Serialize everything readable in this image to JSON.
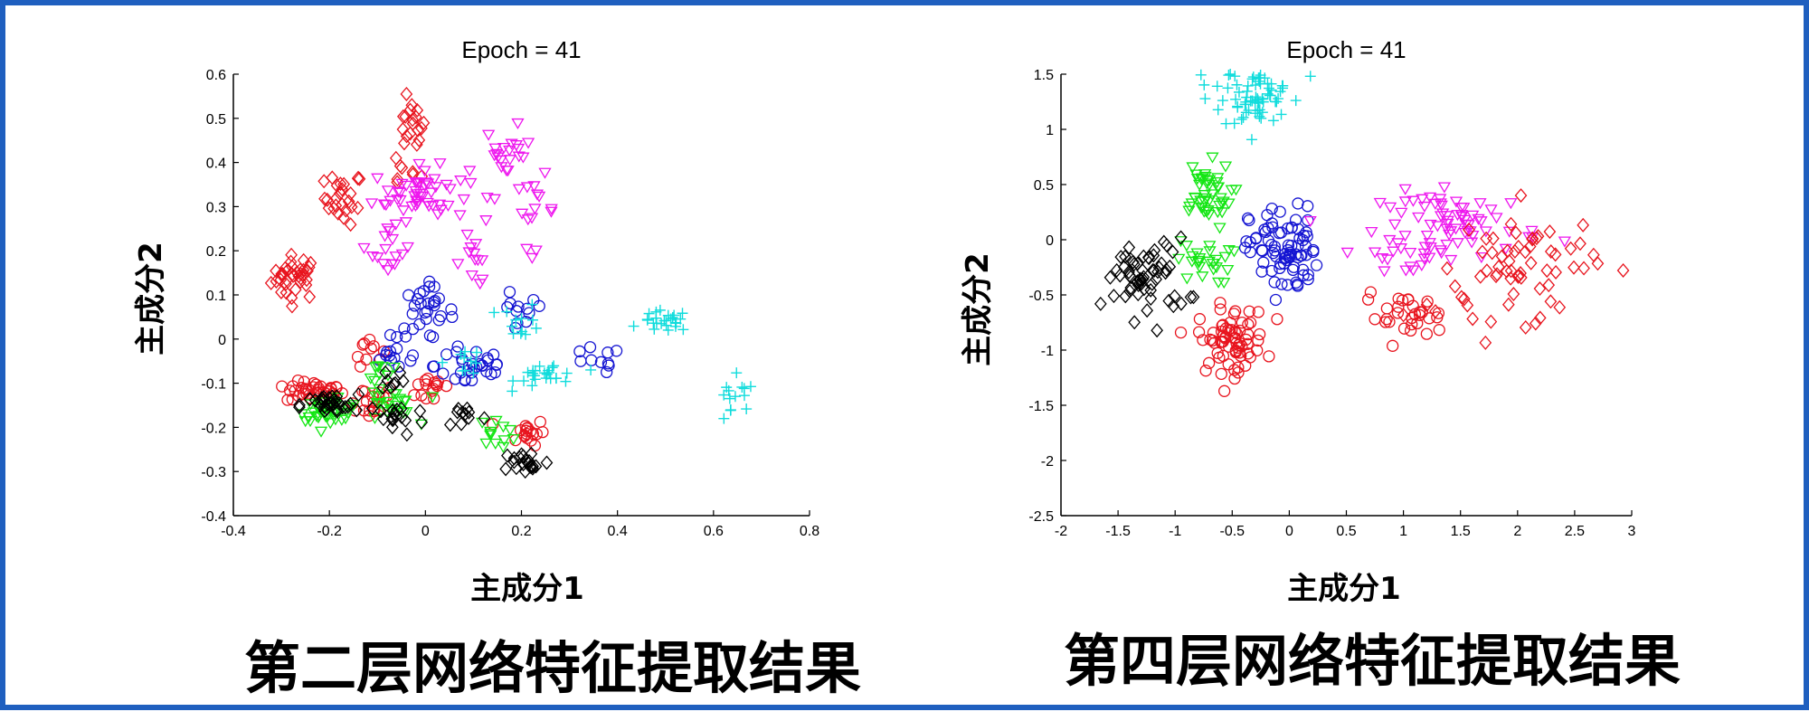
{
  "colors": {
    "border": "#1f5fbf",
    "red": "#e8141e",
    "magenta": "#ee16ee",
    "blue": "#1414d2",
    "cyan": "#10dcdc",
    "green": "#14e614",
    "black": "#000000"
  },
  "captions": [
    "第二层网络特征提取结果",
    "第四层网络特征提取结果"
  ],
  "chart_data": [
    {
      "type": "scatter",
      "title": "Epoch = 41",
      "xlabel": "主成分1",
      "ylabel": "主成分2",
      "xlim": [
        -0.4,
        0.8
      ],
      "ylim": [
        -0.4,
        0.6
      ],
      "xticks": [
        -0.4,
        -0.2,
        0,
        0.2,
        0.4,
        0.6,
        0.8
      ],
      "yticks": [
        -0.4,
        -0.3,
        -0.2,
        -0.1,
        0,
        0.1,
        0.2,
        0.3,
        0.4,
        0.5,
        0.6
      ],
      "grid": false,
      "series": [
        {
          "marker": "diamond",
          "color": "red",
          "clusters": [
            [
              -0.27,
              0.14,
              0.025,
              0.025,
              35
            ],
            [
              -0.17,
              0.32,
              0.02,
              0.03,
              25
            ],
            [
              -0.03,
              0.48,
              0.015,
              0.03,
              18
            ],
            [
              -0.05,
              0.38,
              0.02,
              0.02,
              8
            ]
          ]
        },
        {
          "marker": "circle",
          "color": "red",
          "clusters": [
            [
              -0.23,
              -0.12,
              0.03,
              0.012,
              40
            ],
            [
              -0.12,
              -0.14,
              0.03,
              0.02,
              20
            ],
            [
              0.02,
              -0.11,
              0.02,
              0.02,
              15
            ],
            [
              0.21,
              -0.21,
              0.02,
              0.015,
              18
            ],
            [
              -0.12,
              -0.02,
              0.015,
              0.02,
              10
            ]
          ]
        },
        {
          "marker": "triangle-down",
          "color": "magenta",
          "clusters": [
            [
              -0.01,
              0.33,
              0.05,
              0.03,
              55
            ],
            [
              -0.07,
              0.2,
              0.02,
              0.03,
              15
            ],
            [
              0.17,
              0.42,
              0.025,
              0.03,
              20
            ],
            [
              0.23,
              0.29,
              0.02,
              0.04,
              15
            ],
            [
              0.1,
              0.18,
              0.02,
              0.03,
              12
            ]
          ]
        },
        {
          "marker": "circle",
          "color": "blue",
          "clusters": [
            [
              0.0,
              0.06,
              0.03,
              0.03,
              30
            ],
            [
              0.1,
              -0.06,
              0.04,
              0.03,
              30
            ],
            [
              -0.06,
              -0.04,
              0.03,
              0.015,
              12
            ],
            [
              0.35,
              -0.05,
              0.03,
              0.015,
              10
            ],
            [
              0.19,
              0.05,
              0.03,
              0.03,
              12
            ]
          ]
        },
        {
          "marker": "plus",
          "color": "cyan",
          "clusters": [
            [
              0.5,
              0.04,
              0.025,
              0.012,
              25
            ],
            [
              0.64,
              -0.15,
              0.025,
              0.03,
              14
            ],
            [
              0.26,
              -0.08,
              0.035,
              0.015,
              25
            ],
            [
              0.2,
              0.04,
              0.02,
              0.02,
              12
            ],
            [
              0.08,
              -0.05,
              0.02,
              0.015,
              10
            ]
          ]
        },
        {
          "marker": "triangle-down",
          "color": "green",
          "clusters": [
            [
              -0.2,
              -0.16,
              0.03,
              0.012,
              40
            ],
            [
              -0.08,
              -0.15,
              0.03,
              0.025,
              25
            ],
            [
              0.15,
              -0.21,
              0.02,
              0.015,
              12
            ],
            [
              -0.1,
              -0.07,
              0.015,
              0.015,
              8
            ]
          ]
        },
        {
          "marker": "diamond",
          "color": "black",
          "clusters": [
            [
              -0.2,
              -0.15,
              0.03,
              0.012,
              30
            ],
            [
              -0.06,
              -0.18,
              0.03,
              0.02,
              18
            ],
            [
              0.21,
              -0.28,
              0.025,
              0.015,
              20
            ],
            [
              0.08,
              -0.17,
              0.02,
              0.015,
              10
            ],
            [
              -0.07,
              -0.09,
              0.015,
              0.015,
              8
            ]
          ]
        }
      ]
    },
    {
      "type": "scatter",
      "title": "Epoch = 41",
      "xlabel": "主成分1",
      "ylabel": "主成分2",
      "xlim": [
        -2,
        3
      ],
      "ylim": [
        -2.5,
        1.5
      ],
      "xticks": [
        -2,
        -1.5,
        -1,
        -0.5,
        0,
        0.5,
        1,
        1.5,
        2,
        2.5,
        3
      ],
      "yticks": [
        -2.5,
        -2,
        -1.5,
        -1,
        -0.5,
        0,
        0.5,
        1,
        1.5
      ],
      "grid": false,
      "series": [
        {
          "marker": "plus",
          "color": "cyan",
          "clusters": [
            [
              -0.3,
              1.25,
              0.15,
              0.12,
              50
            ],
            [
              -0.25,
              1.45,
              0.2,
              0.04,
              20
            ]
          ]
        },
        {
          "marker": "triangle-down",
          "color": "green",
          "clusters": [
            [
              -0.75,
              0.4,
              0.12,
              0.15,
              45
            ],
            [
              -0.75,
              -0.2,
              0.12,
              0.1,
              25
            ]
          ]
        },
        {
          "marker": "circle",
          "color": "blue",
          "clusters": [
            [
              -0.05,
              -0.1,
              0.15,
              0.2,
              80
            ]
          ]
        },
        {
          "marker": "diamond",
          "color": "black",
          "clusters": [
            [
              -1.25,
              -0.35,
              0.18,
              0.18,
              60
            ]
          ]
        },
        {
          "marker": "circle",
          "color": "red",
          "clusters": [
            [
              -0.5,
              -0.9,
              0.15,
              0.15,
              70
            ],
            [
              1.0,
              -0.7,
              0.18,
              0.1,
              30
            ]
          ]
        },
        {
          "marker": "triangle-down",
          "color": "magenta",
          "clusters": [
            [
              1.5,
              0.15,
              0.35,
              0.15,
              70
            ],
            [
              1.0,
              -0.15,
              0.2,
              0.08,
              15
            ]
          ]
        },
        {
          "marker": "diamond",
          "color": "red",
          "clusters": [
            [
              2.1,
              -0.2,
              0.3,
              0.25,
              50
            ],
            [
              1.6,
              -0.5,
              0.3,
              0.15,
              15
            ]
          ]
        }
      ]
    }
  ]
}
